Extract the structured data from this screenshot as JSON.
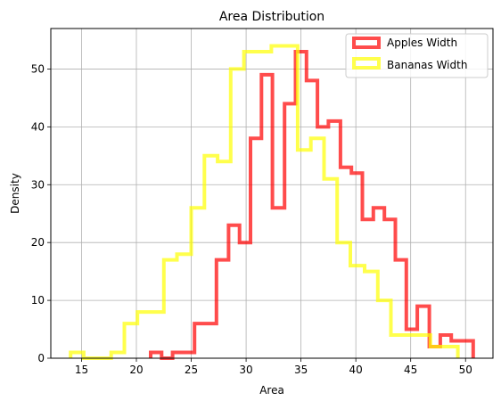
{
  "chart_data": {
    "type": "histogram-step",
    "title": "Area Distribution",
    "xlabel": "Area",
    "ylabel": "Density",
    "xlim": [
      12.2,
      52.5
    ],
    "ylim": [
      0,
      57
    ],
    "xticks": [
      15,
      20,
      25,
      30,
      35,
      40,
      45,
      50
    ],
    "yticks": [
      0,
      10,
      20,
      30,
      40,
      50
    ],
    "grid": true,
    "legend_position": "top-right",
    "series": [
      {
        "name": "Apples Width",
        "color": "#ff0000",
        "edges": [
          21.3,
          22.3,
          23.3,
          24.3,
          25.3,
          26.3,
          27.3,
          28.4,
          29.4,
          30.4,
          31.4,
          32.4,
          33.5,
          34.5,
          35.5,
          36.5,
          37.5,
          38.6,
          39.6,
          40.6,
          41.6,
          42.6,
          43.6,
          44.6,
          45.6,
          46.7,
          47.7,
          48.7,
          49.7,
          50.7
        ],
        "counts": [
          1,
          0,
          1,
          1,
          6,
          6,
          17,
          23,
          20,
          38,
          49,
          26,
          44,
          53,
          48,
          40,
          41,
          33,
          32,
          24,
          26,
          24,
          17,
          5,
          9,
          2,
          4,
          3,
          3
        ]
      },
      {
        "name": "Bananas Width",
        "color": "#ffff00",
        "edges": [
          14.0,
          15.2,
          16.5,
          17.7,
          18.9,
          20.1,
          21.3,
          22.5,
          23.7,
          25.0,
          26.2,
          27.4,
          28.6,
          29.8,
          31.0,
          32.3,
          33.5,
          34.7,
          35.9,
          37.1,
          38.3,
          39.5,
          40.8,
          42.0,
          43.2,
          44.4,
          45.6,
          46.8,
          48.0,
          49.3
        ],
        "counts": [
          1,
          0,
          0,
          1,
          6,
          8,
          8,
          17,
          18,
          26,
          35,
          34,
          50,
          53,
          53,
          54,
          54,
          36,
          38,
          31,
          20,
          16,
          15,
          10,
          4,
          4,
          4,
          2,
          2
        ]
      }
    ]
  }
}
